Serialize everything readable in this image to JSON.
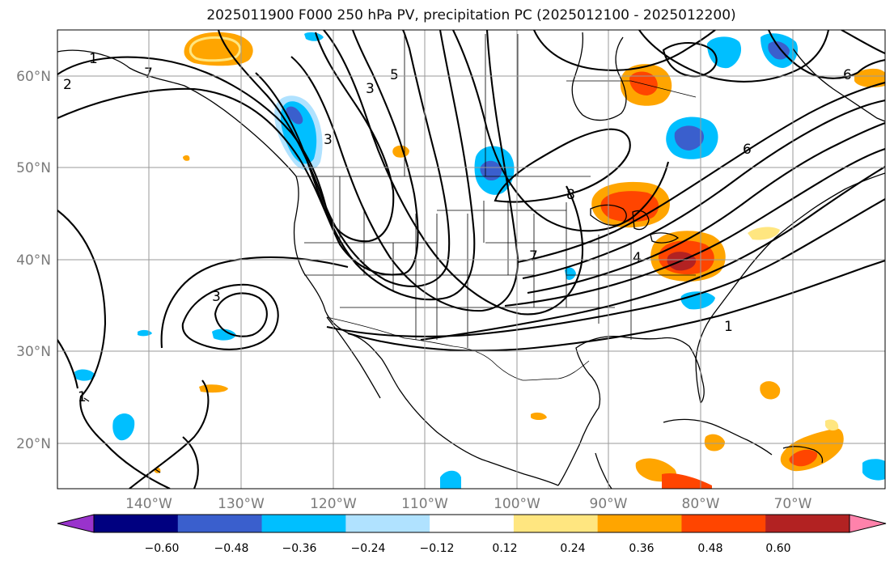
{
  "title": "2025011900 F000 250 hPa PV, precipitation PC (2025012100 - 2025012200)",
  "map": {
    "lat_labels": [
      "60°N",
      "50°N",
      "40°N",
      "30°N",
      "20°N"
    ],
    "lon_labels": [
      "140°W",
      "130°W",
      "120°W",
      "110°W",
      "100°W",
      "90°W",
      "80°W",
      "70°W"
    ],
    "grid": true,
    "pv_contour_labels": [
      "1",
      "1",
      "2",
      "3",
      "3",
      "3",
      "4",
      "5",
      "6",
      "6",
      "7",
      "7",
      "8",
      "1"
    ]
  },
  "colorbar": {
    "tick_labels": [
      "−0.60",
      "−0.48",
      "−0.36",
      "−0.24",
      "−0.12",
      "0.12",
      "0.24",
      "0.36",
      "0.48",
      "0.60"
    ],
    "colors": [
      "#9933cc",
      "#000080",
      "#3a5fcd",
      "#00bfff",
      "#b0e2ff",
      "#ffffff",
      "#ffe680",
      "#ffa500",
      "#ff4500",
      "#b22222",
      "#ff82ab"
    ]
  }
}
